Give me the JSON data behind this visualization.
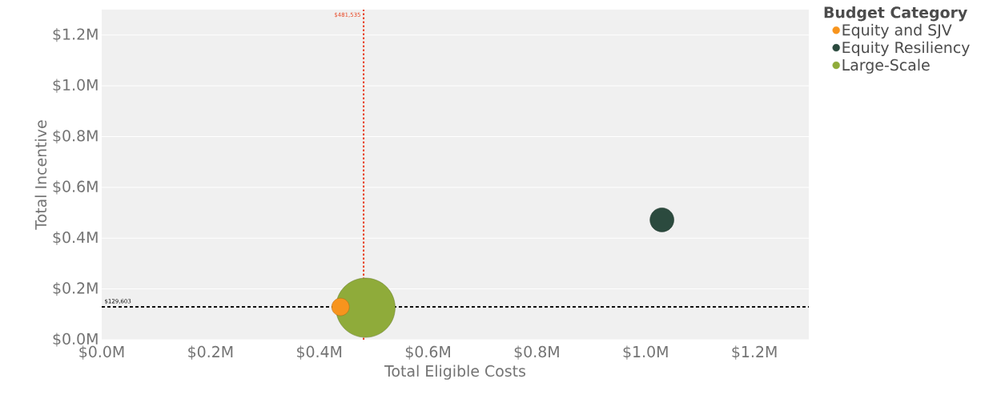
{
  "chart_data": {
    "type": "bubble",
    "xlabel": "Total Eligible Costs",
    "ylabel": "Total Incentive",
    "legend_title": "Budget Category",
    "series": [
      {
        "name": "Equity and SJV",
        "color": "#f7941d",
        "x": [
          439000
        ],
        "values": [
          129000
        ],
        "sizes": [
          0.088
        ]
      },
      {
        "name": "Equity Resiliency",
        "color": "#2b4a3e",
        "x": [
          1030000
        ],
        "values": [
          472000
        ],
        "sizes": [
          0.164
        ]
      },
      {
        "name": "Large-Scale",
        "color": "#8fab3a",
        "x": [
          485000
        ],
        "values": [
          126000
        ],
        "sizes": [
          1
        ]
      }
    ],
    "xlim": [
      0,
      1300000
    ],
    "ylim": [
      0,
      1300000
    ],
    "xticks": [
      {
        "value": 0,
        "label": "$0.0M"
      },
      {
        "value": 200000,
        "label": "$0.2M"
      },
      {
        "value": 400000,
        "label": "$0.4M"
      },
      {
        "value": 600000,
        "label": "$0.6M"
      },
      {
        "value": 800000,
        "label": "$0.8M"
      },
      {
        "value": 1000000,
        "label": "$1.0M"
      },
      {
        "value": 1200000,
        "label": "$1.2M"
      }
    ],
    "yticks": [
      {
        "value": 0,
        "label": "$0.0M"
      },
      {
        "value": 200000,
        "label": "$0.2M"
      },
      {
        "value": 400000,
        "label": "$0.4M"
      },
      {
        "value": 600000,
        "label": "$0.6M"
      },
      {
        "value": 800000,
        "label": "$0.8M"
      },
      {
        "value": 1000000,
        "label": "$1.0M"
      },
      {
        "value": 1200000,
        "label": "$1.2M"
      }
    ],
    "ref_lines": [
      {
        "axis": "x",
        "value": 481535,
        "label": "$481,535",
        "color": "#e8401c",
        "line_style": "dotted"
      },
      {
        "axis": "y",
        "value": 129603,
        "label": "$129,603",
        "color": "#111111",
        "line_style": "dashed"
      }
    ],
    "grid": "y",
    "legend": "top right",
    "marker": "circle"
  }
}
